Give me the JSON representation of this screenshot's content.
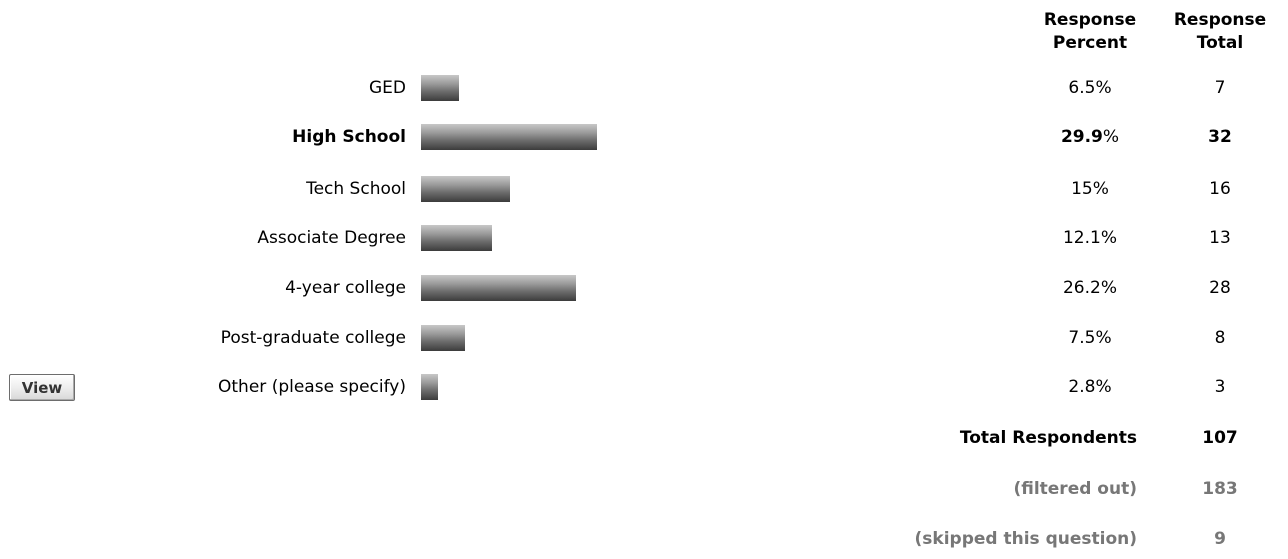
{
  "header": {
    "pct_line1": "Response",
    "pct_line2": "Percent",
    "total_line1": "Response",
    "total_line2": "Total"
  },
  "rows": [
    {
      "label": "GED",
      "percent_num": "6.5",
      "percent_sign": "%",
      "count": "7",
      "bold": false,
      "bar_value": 6.5
    },
    {
      "label": "High School",
      "percent_num": "29.9",
      "percent_sign": "%",
      "count": "32",
      "bold": true,
      "bar_value": 29.9
    },
    {
      "label": "Tech School",
      "percent_num": "15",
      "percent_sign": "%",
      "count": "16",
      "bold": false,
      "bar_value": 15
    },
    {
      "label": "Associate Degree",
      "percent_num": "12.1",
      "percent_sign": "%",
      "count": "13",
      "bold": false,
      "bar_value": 12.1
    },
    {
      "label": "4-year college",
      "percent_num": "26.2",
      "percent_sign": "%",
      "count": "28",
      "bold": false,
      "bar_value": 26.2
    },
    {
      "label": "Post-graduate college",
      "percent_num": "7.5",
      "percent_sign": "%",
      "count": "8",
      "bold": false,
      "bar_value": 7.5
    },
    {
      "label": "Other (please specify)",
      "percent_num": "2.8",
      "percent_sign": "%",
      "count": "3",
      "bold": false,
      "bar_value": 2.8
    }
  ],
  "view_button": {
    "label": "View"
  },
  "summary": {
    "total_label": "Total Respondents",
    "total_value": "107",
    "filtered_label": "(filtered out)",
    "filtered_value": "183",
    "skipped_label": "(skipped this question)",
    "skipped_value": "9"
  },
  "colors": {
    "muted": "#777777"
  }
}
